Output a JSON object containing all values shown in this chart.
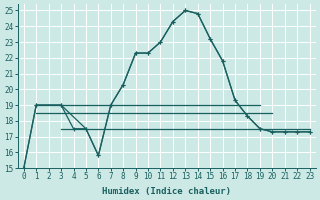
{
  "xlabel": "Humidex (Indice chaleur)",
  "xlim": [
    -0.5,
    23.5
  ],
  "ylim": [
    15,
    25.4
  ],
  "yticks": [
    15,
    16,
    17,
    18,
    19,
    20,
    21,
    22,
    23,
    24,
    25
  ],
  "xticks": [
    0,
    1,
    2,
    3,
    4,
    5,
    6,
    7,
    8,
    9,
    10,
    11,
    12,
    13,
    14,
    15,
    16,
    17,
    18,
    19,
    20,
    21,
    22,
    23
  ],
  "bg_color": "#cce9e5",
  "line_color": "#1a6060",
  "grid_color": "#ffffff",
  "flat_line1": {
    "x": [
      1,
      19
    ],
    "y": [
      19,
      19
    ]
  },
  "flat_line2": {
    "x": [
      1,
      20
    ],
    "y": [
      18.5,
      18.5
    ]
  },
  "flat_line3": {
    "x": [
      3,
      23
    ],
    "y": [
      17.5,
      17.5
    ]
  },
  "curve1_x": [
    0,
    1,
    3,
    5,
    6,
    7,
    8,
    9,
    10,
    11,
    12,
    13,
    14,
    15,
    16,
    17,
    18,
    19,
    20,
    21,
    22,
    23
  ],
  "curve1_y": [
    15,
    19,
    19,
    17.5,
    15.8,
    19.0,
    20.3,
    22.3,
    22.3,
    23.0,
    24.3,
    25.0,
    24.8,
    23.2,
    21.8,
    19.3,
    18.3,
    17.5,
    17.3,
    17.3,
    17.3,
    17.3
  ],
  "curve2_x": [
    0,
    1,
    3,
    4,
    5,
    6,
    7,
    8,
    9,
    10,
    11,
    12,
    13,
    14,
    15,
    16,
    17,
    18,
    19,
    20,
    21,
    22,
    23
  ],
  "curve2_y": [
    15,
    19,
    19,
    17.5,
    17.5,
    15.8,
    19.0,
    20.3,
    22.3,
    22.3,
    23.0,
    24.3,
    25.0,
    24.8,
    23.2,
    21.8,
    19.3,
    18.3,
    17.5,
    17.3,
    17.3,
    17.3,
    17.3
  ],
  "lw": 0.9,
  "marker_size": 3.0,
  "tick_fontsize": 5.5,
  "xlabel_fontsize": 6.5
}
